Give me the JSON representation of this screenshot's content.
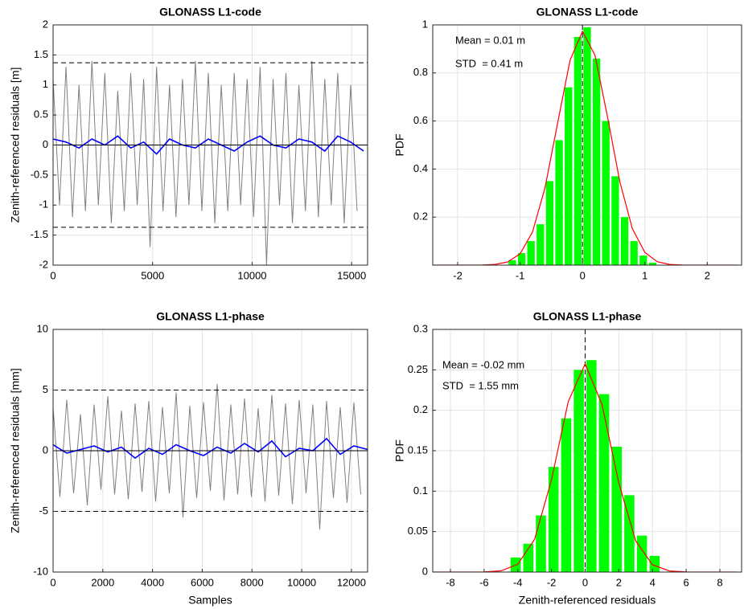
{
  "chart_data": [
    {
      "type": "line",
      "title": "GLONASS L1-code",
      "ylabel": "Zenith-referenced residuals [m]",
      "xlim": [
        0,
        15800
      ],
      "ylim": [
        -2,
        2
      ],
      "xticks": [
        0,
        5000,
        10000,
        15000
      ],
      "yticks": [
        -2,
        -1.5,
        -1,
        -0.5,
        0,
        0.5,
        1,
        1.5,
        2
      ],
      "grid": true,
      "reference_lines": [
        {
          "value": 1.37,
          "color": "#000000",
          "style": "dashed"
        },
        {
          "value": -1.37,
          "color": "#000000",
          "style": "dashed"
        },
        {
          "value": 0,
          "color": "#000000",
          "style": "solid"
        }
      ],
      "series": [
        {
          "color": "#808080",
          "x": [
            0,
            325,
            650,
            975,
            1300,
            1625,
            1950,
            2275,
            2600,
            2925,
            3250,
            3575,
            3900,
            4225,
            4550,
            4875,
            5200,
            5525,
            5850,
            6175,
            6500,
            6825,
            7150,
            7475,
            7800,
            8125,
            8450,
            8775,
            9100,
            9425,
            9750,
            10075,
            10400,
            10725,
            11050,
            11375,
            11700,
            12025,
            12350,
            12675,
            13000,
            13325,
            13650,
            13975,
            14300,
            14625,
            14950,
            15275
          ],
          "values": [
            1.1,
            -1.0,
            1.3,
            -1.2,
            1.0,
            -1.1,
            1.4,
            -1.0,
            1.2,
            -1.3,
            0.9,
            -1.1,
            1.2,
            -1.0,
            1.1,
            -1.7,
            1.3,
            -1.1,
            1.0,
            -1.2,
            1.1,
            -1.0,
            1.4,
            -1.1,
            1.2,
            -1.3,
            1.0,
            -1.1,
            1.2,
            -1.0,
            1.1,
            -1.2,
            1.3,
            -2.0,
            1.1,
            -1.0,
            1.2,
            -1.3,
            1.0,
            -1.1,
            1.4,
            -1.2,
            1.1,
            -1.0,
            1.2,
            -1.3,
            1.0,
            -1.1
          ]
        },
        {
          "color": "#0000ff",
          "x": [
            0,
            650,
            1300,
            1950,
            2600,
            3250,
            3900,
            4550,
            5200,
            5850,
            6500,
            7150,
            7800,
            8450,
            9100,
            9750,
            10400,
            11050,
            11700,
            12350,
            13000,
            13650,
            14300,
            14950,
            15600
          ],
          "values": [
            0.1,
            0.05,
            -0.05,
            0.1,
            0.0,
            0.15,
            -0.05,
            0.05,
            -0.15,
            0.1,
            0.0,
            -0.05,
            0.1,
            0.0,
            -0.1,
            0.05,
            0.15,
            0.0,
            -0.05,
            0.1,
            0.05,
            -0.1,
            0.15,
            0.05,
            -0.1
          ]
        }
      ]
    },
    {
      "type": "histogram",
      "title": "GLONASS L1-code",
      "ylabel": "PDF",
      "xlim": [
        -2.4,
        2.55
      ],
      "ylim": [
        0,
        1
      ],
      "xticks": [
        -2,
        -1,
        0,
        1,
        2
      ],
      "yticks": [
        0.2,
        0.4,
        0.6,
        0.8,
        1
      ],
      "grid": true,
      "annotations": [
        "Mean = 0.01 m",
        "STD  = 0.41 m"
      ],
      "vline": 0,
      "color": "#00ff00",
      "bins": [
        -1.2,
        -1.05,
        -0.9,
        -0.75,
        -0.6,
        -0.45,
        -0.3,
        -0.15,
        0,
        0.15,
        0.3,
        0.45,
        0.6,
        0.75,
        0.9,
        1.05,
        1.2
      ],
      "values": [
        0.02,
        0.05,
        0.1,
        0.17,
        0.35,
        0.52,
        0.74,
        0.95,
        0.99,
        0.86,
        0.6,
        0.37,
        0.2,
        0.1,
        0.04,
        0.01
      ],
      "fit": {
        "color": "#ff0000",
        "x": [
          -2.4,
          -1.6,
          -1.4,
          -1.2,
          -1.0,
          -0.8,
          -0.6,
          -0.4,
          -0.2,
          0,
          0.2,
          0.4,
          0.6,
          0.8,
          1.0,
          1.2,
          1.4,
          1.6,
          2.5
        ],
        "values": [
          0,
          0.0004,
          0.003,
          0.013,
          0.047,
          0.138,
          0.322,
          0.59,
          0.853,
          0.973,
          0.874,
          0.619,
          0.346,
          0.152,
          0.053,
          0.014,
          0.003,
          0.0005,
          0
        ]
      }
    },
    {
      "type": "line",
      "title": "GLONASS L1-phase",
      "ylabel": "Zenith-referenced residuals [mm]",
      "xlabel": "Samples",
      "xlim": [
        0,
        12650
      ],
      "ylim": [
        -10,
        10
      ],
      "xticks": [
        0,
        2000,
        4000,
        6000,
        8000,
        10000,
        12000
      ],
      "yticks": [
        -10,
        -5,
        0,
        5,
        10
      ],
      "grid": true,
      "reference_lines": [
        {
          "value": 5,
          "color": "#000000",
          "style": "dashed"
        },
        {
          "value": -5,
          "color": "#000000",
          "style": "dashed"
        },
        {
          "value": 0,
          "color": "#000000",
          "style": "solid"
        }
      ],
      "series": [
        {
          "color": "#808080",
          "x": [
            0,
            275,
            550,
            825,
            1100,
            1375,
            1650,
            1925,
            2200,
            2475,
            2750,
            3025,
            3300,
            3575,
            3850,
            4125,
            4400,
            4675,
            4950,
            5225,
            5500,
            5775,
            6050,
            6325,
            6600,
            6875,
            7150,
            7425,
            7700,
            7975,
            8250,
            8525,
            8800,
            9075,
            9350,
            9625,
            9900,
            10175,
            10450,
            10725,
            11000,
            11275,
            11550,
            11825,
            12100,
            12375
          ],
          "values": [
            3.5,
            -3.8,
            4.2,
            -3.5,
            3.0,
            -4.5,
            3.8,
            -3.2,
            4.5,
            -3.6,
            3.3,
            -4.0,
            3.9,
            -3.4,
            4.1,
            -4.2,
            3.6,
            -3.5,
            4.8,
            -5.5,
            3.7,
            -3.9,
            4.0,
            -3.3,
            5.5,
            -4.1,
            3.8,
            -3.6,
            4.3,
            -3.8,
            3.5,
            -4.2,
            4.6,
            -3.7,
            3.9,
            -4.4,
            4.2,
            -3.5,
            3.8,
            -6.5,
            4.1,
            -3.9,
            3.6,
            -4.3,
            4.0,
            -3.6
          ]
        },
        {
          "color": "#0000ff",
          "x": [
            0,
            550,
            1100,
            1650,
            2200,
            2750,
            3300,
            3850,
            4400,
            4950,
            5500,
            6050,
            6600,
            7150,
            7700,
            8250,
            8800,
            9350,
            9900,
            10450,
            11000,
            11550,
            12100,
            12650
          ],
          "values": [
            0.5,
            -0.2,
            0.1,
            0.4,
            -0.1,
            0.3,
            -0.6,
            0.2,
            -0.3,
            0.5,
            0.0,
            -0.4,
            0.3,
            -0.2,
            0.6,
            -0.1,
            0.8,
            -0.5,
            0.2,
            0.0,
            1.0,
            -0.3,
            0.4,
            0.1
          ]
        }
      ]
    },
    {
      "type": "histogram",
      "title": "GLONASS L1-phase",
      "ylabel": "PDF",
      "xlabel": "Zenith-referenced residuals",
      "xlim": [
        -9.05,
        9.29
      ],
      "ylim": [
        0,
        0.3
      ],
      "xticks": [
        -8,
        -6,
        -4,
        -2,
        0,
        2,
        4,
        6,
        8
      ],
      "yticks": [
        0,
        0.05,
        0.1,
        0.15,
        0.2,
        0.25,
        0.3
      ],
      "grid": true,
      "annotations": [
        "Mean = -0.02 mm",
        "STD  = 1.55 mm"
      ],
      "vline": 0,
      "color": "#00ff00",
      "bins": [
        -4.5,
        -3.75,
        -3,
        -2.25,
        -1.5,
        -0.75,
        0,
        0.75,
        1.5,
        2.25,
        3,
        3.75,
        4.5
      ],
      "values": [
        0.018,
        0.035,
        0.07,
        0.13,
        0.19,
        0.25,
        0.262,
        0.22,
        0.155,
        0.095,
        0.045,
        0.02
      ],
      "fit": {
        "color": "#ff0000",
        "x": [
          -9,
          -6,
          -5,
          -4,
          -3,
          -2,
          -1,
          0,
          1,
          2,
          3,
          4,
          5,
          6,
          9
        ],
        "values": [
          0,
          0.0002,
          0.0015,
          0.0095,
          0.0406,
          0.1138,
          0.2108,
          0.2574,
          0.2073,
          0.1101,
          0.0386,
          0.0089,
          0.0014,
          0.0001,
          0
        ]
      }
    }
  ]
}
